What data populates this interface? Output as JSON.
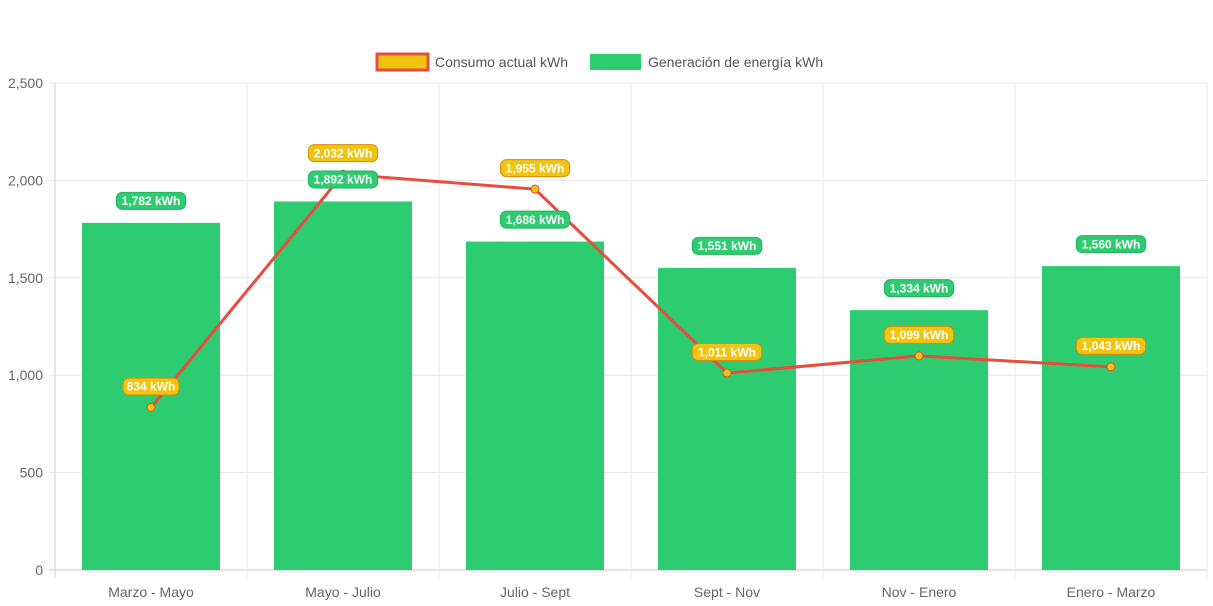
{
  "chart_data": {
    "type": "bar",
    "title": "",
    "xlabel": "",
    "ylabel": "",
    "categories": [
      "Marzo - Mayo",
      "Mayo - Julio",
      "Julio - Sept",
      "Sept - Nov",
      "Nov - Enero",
      "Enero - Marzo"
    ],
    "ylim": [
      0,
      2500
    ],
    "yticks": [
      0,
      500,
      1000,
      1500,
      2000,
      2500
    ],
    "ytick_labels": [
      "0",
      "500",
      "1,000",
      "1,500",
      "2,000",
      "2,500"
    ],
    "grid": true,
    "legend_position": "top-center",
    "series": [
      {
        "name": "Consumo actual kWh",
        "type": "line",
        "color": "#e74c3c",
        "point_color": "#f1c40f",
        "badge_color": "#f1c40f",
        "values": [
          834,
          2032,
          1955,
          1011,
          1099,
          1043
        ],
        "labels": [
          "834 kWh",
          "2,032 kWh",
          "1,955 kWh",
          "1,011 kWh",
          "1,099 kWh",
          "1,043 kWh"
        ]
      },
      {
        "name": "Generación de energía kWh",
        "type": "bar",
        "color": "#2ecc71",
        "badge_color": "#2ecc71",
        "values": [
          1782,
          1892,
          1686,
          1551,
          1334,
          1560
        ],
        "labels": [
          "1,782 kWh",
          "1,892 kWh",
          "1,686 kWh",
          "1,551 kWh",
          "1,334 kWh",
          "1,560 kWh"
        ]
      }
    ]
  }
}
